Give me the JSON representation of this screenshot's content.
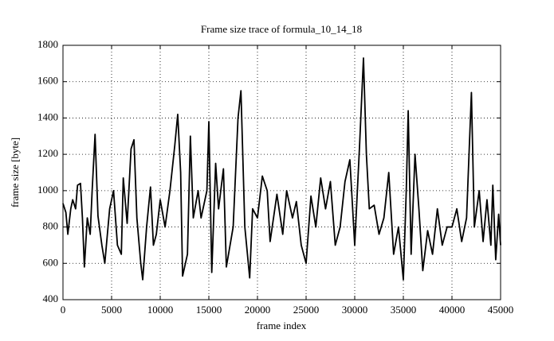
{
  "chart_data": {
    "type": "line",
    "title": "Frame size trace of formula_10_14_18",
    "x_label": "frame index",
    "y_label": "frame size [byte]",
    "x": [
      0,
      300,
      500,
      800,
      1000,
      1300,
      1500,
      1800,
      2000,
      2200,
      2500,
      2800,
      3000,
      3300,
      3600,
      4000,
      4300,
      4800,
      5200,
      5600,
      6000,
      6200,
      6600,
      7000,
      7300,
      7600,
      8000,
      8200,
      8600,
      9000,
      9300,
      9600,
      10000,
      10500,
      11000,
      11500,
      11800,
      12100,
      12300,
      12800,
      13100,
      13400,
      13900,
      14200,
      14800,
      15000,
      15300,
      15700,
      16000,
      16500,
      16800,
      17500,
      18000,
      18300,
      18700,
      19200,
      19500,
      20000,
      20500,
      21000,
      21300,
      22000,
      22600,
      23000,
      23600,
      24000,
      24500,
      25000,
      25500,
      26000,
      26500,
      27000,
      27500,
      28000,
      28500,
      29000,
      29500,
      30000,
      30500,
      30900,
      31200,
      31500,
      32000,
      32500,
      33000,
      33500,
      34000,
      34500,
      35000,
      35300,
      35500,
      35800,
      36200,
      36600,
      37000,
      37500,
      38000,
      38500,
      39000,
      39500,
      40000,
      40500,
      41000,
      41500,
      42000,
      42300,
      42800,
      43200,
      43600,
      44000,
      44200,
      44500,
      44800,
      45000
    ],
    "values": [
      930,
      880,
      760,
      900,
      950,
      900,
      1030,
      1040,
      850,
      580,
      850,
      760,
      1000,
      1310,
      860,
      700,
      600,
      900,
      1000,
      700,
      650,
      1070,
      820,
      1230,
      1280,
      850,
      600,
      510,
      800,
      1020,
      700,
      760,
      950,
      800,
      1000,
      1250,
      1420,
      1100,
      530,
      650,
      1300,
      850,
      1000,
      850,
      1000,
      1380,
      550,
      1150,
      900,
      1120,
      580,
      800,
      1400,
      1550,
      800,
      520,
      900,
      850,
      1080,
      1000,
      720,
      980,
      760,
      1000,
      850,
      940,
      700,
      600,
      970,
      800,
      1070,
      900,
      1050,
      700,
      800,
      1050,
      1170,
      700,
      1250,
      1730,
      1200,
      900,
      920,
      760,
      850,
      1100,
      650,
      800,
      510,
      1000,
      1440,
      650,
      1200,
      900,
      560,
      780,
      650,
      900,
      700,
      800,
      800,
      900,
      720,
      850,
      1540,
      800,
      1000,
      720,
      950,
      700,
      1030,
      620,
      870,
      700
    ],
    "color": "#000000",
    "xlim": [
      0,
      45000
    ],
    "xticks": [
      0,
      5000,
      10000,
      15000,
      20000,
      25000,
      30000,
      35000,
      40000,
      45000
    ],
    "ylim": [
      400,
      1800
    ],
    "yticks": [
      400,
      600,
      800,
      1000,
      1200,
      1400,
      1600,
      1800
    ],
    "grid": true
  }
}
